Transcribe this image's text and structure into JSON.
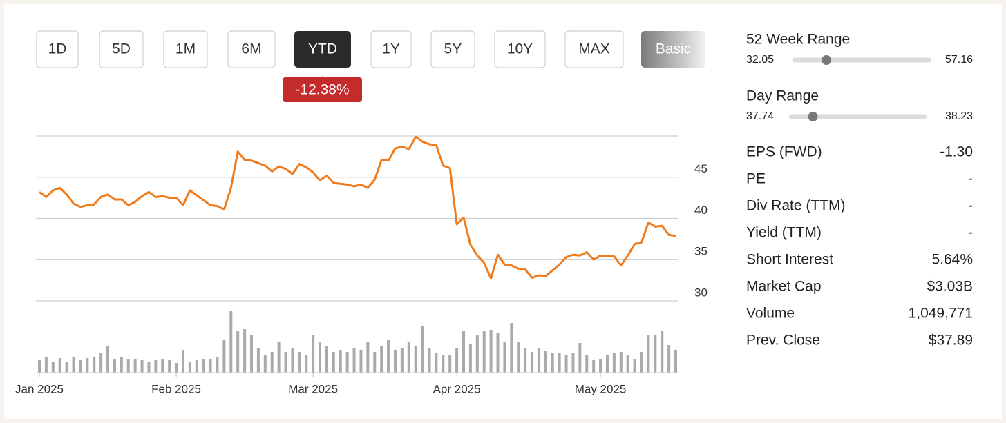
{
  "toolbar": {
    "buttons": [
      "1D",
      "5D",
      "1M",
      "6M",
      "YTD",
      "1Y",
      "5Y",
      "10Y",
      "MAX",
      "Basic"
    ],
    "badge": "-12.38%"
  },
  "chart_data": {
    "type": "line",
    "categories": [
      "Jan 2025",
      null,
      null,
      null,
      null,
      null,
      null,
      null,
      null,
      null,
      null,
      null,
      null,
      null,
      null,
      null,
      null,
      null,
      null,
      null,
      "Feb 2025",
      null,
      null,
      null,
      null,
      null,
      null,
      null,
      null,
      null,
      null,
      null,
      null,
      null,
      null,
      null,
      null,
      null,
      null,
      null,
      "Mar 2025",
      null,
      null,
      null,
      null,
      null,
      null,
      null,
      null,
      null,
      null,
      null,
      null,
      null,
      null,
      null,
      null,
      null,
      null,
      null,
      null,
      "Apr 2025",
      null,
      null,
      null,
      null,
      null,
      null,
      null,
      null,
      null,
      null,
      null,
      null,
      null,
      null,
      null,
      null,
      null,
      null,
      null,
      null,
      "May 2025",
      null,
      null,
      null,
      null,
      null,
      null,
      null,
      null,
      null,
      null,
      null
    ],
    "series": [
      {
        "color": "#f07b1d",
        "values": [
          43.2,
          42.6,
          43.4,
          43.7,
          42.9,
          41.8,
          41.4,
          41.6,
          41.7,
          42.6,
          42.9,
          42.3,
          42.3,
          41.6,
          42.0,
          42.7,
          43.2,
          42.6,
          42.7,
          42.5,
          42.5,
          41.6,
          43.4,
          42.8,
          42.2,
          41.6,
          41.5,
          41.1,
          43.7,
          48.1,
          47.1,
          47.0,
          46.7,
          46.4,
          45.7,
          46.3,
          46.0,
          45.4,
          46.6,
          46.2,
          45.6,
          44.6,
          45.2,
          44.3,
          44.2,
          44.1,
          43.9,
          44.1,
          43.7,
          44.7,
          47.1,
          47.0,
          48.5,
          48.7,
          48.4,
          49.9,
          49.3,
          49.0,
          48.9,
          46.4,
          46.1,
          39.3,
          40.1,
          36.8,
          35.5,
          34.6,
          32.7,
          35.6,
          34.4,
          34.3,
          33.9,
          33.8,
          32.8,
          33.1,
          33.0,
          33.7,
          34.4,
          35.3,
          35.6,
          35.5,
          35.9,
          35.0,
          35.5,
          35.4,
          35.4,
          34.3,
          35.5,
          36.9,
          37.1,
          39.5,
          39.0,
          39.1,
          38.0,
          37.89
        ]
      },
      {
        "type": "bar",
        "axis": "y2",
        "color": "#aaaaaa",
        "values": [
          18,
          23,
          16,
          21,
          15,
          22,
          19,
          21,
          23,
          29,
          38,
          20,
          22,
          20,
          20,
          18,
          15,
          19,
          20,
          19,
          14,
          33,
          15,
          19,
          20,
          20,
          22,
          48,
          90,
          60,
          63,
          55,
          35,
          25,
          30,
          45,
          30,
          35,
          30,
          25,
          55,
          45,
          38,
          30,
          33,
          30,
          35,
          33,
          45,
          30,
          38,
          48,
          33,
          35,
          45,
          38,
          68,
          35,
          28,
          25,
          26,
          35,
          60,
          42,
          55,
          60,
          62,
          58,
          45,
          72,
          45,
          35,
          30,
          35,
          32,
          28,
          28,
          25,
          28,
          43,
          25,
          18,
          20,
          25,
          28,
          30,
          25,
          20,
          30,
          55,
          55,
          60,
          40,
          33
        ]
      }
    ],
    "ylim": [
      30,
      50
    ],
    "yticks": [
      30,
      35,
      40,
      45
    ],
    "y2lim": [
      0,
      100
    ],
    "grid": true
  },
  "stats": {
    "week52": {
      "label": "52 Week Range",
      "low": 32.05,
      "high": 57.16,
      "value": 38.0
    },
    "day": {
      "label": "Day Range",
      "low": 37.74,
      "high": 38.23,
      "value": 37.82
    },
    "rows": [
      [
        "EPS (FWD)",
        "-1.30"
      ],
      [
        "PE",
        "-"
      ],
      [
        "Div Rate (TTM)",
        "-"
      ],
      [
        "Yield (TTM)",
        "-"
      ],
      [
        "Short Interest",
        "5.64%"
      ],
      [
        "Market Cap",
        "$3.03B"
      ],
      [
        "Volume",
        "1,049,771"
      ],
      [
        "Prev. Close",
        "$37.89"
      ]
    ]
  }
}
